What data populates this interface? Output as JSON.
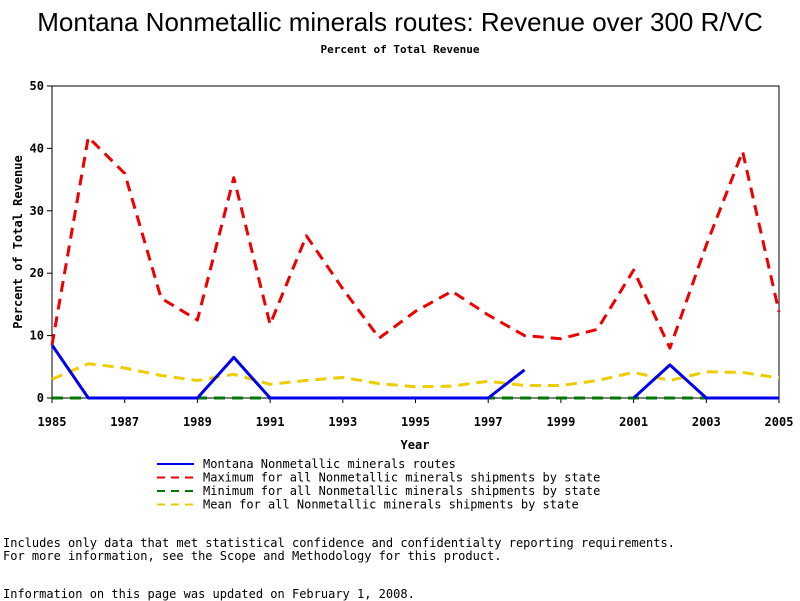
{
  "chart_data": {
    "type": "line",
    "title": "Montana Nonmetallic minerals routes: Revenue over 300 R/VC",
    "subtitle": "Percent of Total Revenue",
    "xlabel": "Year",
    "ylabel": "Percent of Total Revenue",
    "xlim": [
      1985,
      2005
    ],
    "ylim": [
      0,
      50
    ],
    "x_ticks": [
      "1985",
      "1987",
      "1989",
      "1991",
      "1993",
      "1995",
      "1997",
      "1999",
      "2001",
      "2003",
      "2005"
    ],
    "y_ticks": [
      "0",
      "10",
      "20",
      "30",
      "40",
      "50"
    ],
    "grid": false,
    "legend_position": "bottom",
    "series": [
      {
        "name": "Montana Nonmetallic minerals routes",
        "color": "#0000ee",
        "dash": "solid",
        "points": [
          [
            1985,
            8.5
          ],
          [
            1986,
            0
          ],
          [
            1987,
            0
          ],
          [
            1988,
            0
          ],
          [
            1989,
            0
          ],
          [
            1990,
            6.5
          ],
          [
            1991,
            0
          ],
          [
            1992,
            0
          ],
          [
            1993,
            0
          ],
          [
            1994,
            0
          ],
          [
            1995,
            0
          ],
          [
            1996,
            0
          ],
          [
            1997,
            0
          ],
          [
            1998,
            4.5
          ],
          null,
          [
            2001,
            0
          ],
          [
            2002,
            5.3
          ],
          [
            2003,
            0
          ],
          [
            2004,
            0
          ],
          [
            2005,
            0
          ]
        ]
      },
      {
        "name": "Maximum for all Nonmetallic minerals shipments by state",
        "color": "#ee0000",
        "dash": "long-dash",
        "points": [
          [
            1985,
            8.5
          ],
          [
            1986,
            41.8
          ],
          [
            1987,
            36
          ],
          [
            1988,
            16
          ],
          [
            1989,
            12.5
          ],
          [
            1990,
            35.3
          ],
          [
            1991,
            11.8
          ],
          [
            1992,
            26
          ],
          [
            1993,
            17.5
          ],
          [
            1994,
            9.6
          ],
          [
            1995,
            13.9
          ],
          [
            1996,
            17.1
          ],
          [
            1997,
            13.3
          ],
          [
            1998,
            10
          ],
          [
            1999,
            9.5
          ],
          [
            2000,
            11
          ],
          [
            2001,
            20.5
          ],
          [
            2002,
            8
          ],
          [
            2003,
            24.5
          ],
          [
            2004,
            39.5
          ],
          [
            2005,
            13.8
          ]
        ]
      },
      {
        "name": "Minimum for all Nonmetallic minerals shipments by state",
        "color": "#007700",
        "dash": "long-dash",
        "points": [
          [
            1985,
            0
          ],
          [
            1986,
            0
          ],
          [
            1987,
            0
          ],
          [
            1988,
            0
          ],
          [
            1989,
            0
          ],
          [
            1990,
            0
          ],
          [
            1991,
            0
          ],
          [
            1992,
            0
          ],
          [
            1993,
            0
          ],
          [
            1994,
            0
          ],
          [
            1995,
            0
          ],
          [
            1996,
            0
          ],
          [
            1997,
            0
          ],
          [
            1998,
            0
          ],
          [
            1999,
            0
          ],
          [
            2000,
            0
          ],
          [
            2001,
            0
          ],
          [
            2002,
            0
          ],
          [
            2003,
            0
          ],
          [
            2004,
            0
          ],
          [
            2005,
            0
          ]
        ]
      },
      {
        "name": "Mean for all Nonmetallic minerals shipments by state",
        "color": "#eecc00",
        "dash": "long-dash",
        "points": [
          [
            1985,
            3
          ],
          [
            1986,
            5.5
          ],
          [
            1987,
            4.8
          ],
          [
            1988,
            3.6
          ],
          [
            1989,
            2.8
          ],
          [
            1990,
            3.8
          ],
          [
            1991,
            2.2
          ],
          [
            1992,
            2.8
          ],
          [
            1993,
            3.3
          ],
          [
            1994,
            2.3
          ],
          [
            1995,
            1.8
          ],
          [
            1996,
            1.9
          ],
          [
            1997,
            2.7
          ],
          [
            1998,
            2
          ],
          [
            1999,
            2
          ],
          [
            2000,
            2.8
          ],
          [
            2001,
            4.1
          ],
          [
            2002,
            2.8
          ],
          [
            2003,
            4.2
          ],
          [
            2004,
            4.1
          ],
          [
            2005,
            3.2
          ]
        ]
      }
    ]
  },
  "notes": {
    "line1": "Includes only data that met statistical confidence and confidentialty reporting requirements.",
    "line2": "For more information, see the Scope and Methodology for this product.",
    "line3": "Information on this page was updated on February 1, 2008."
  }
}
